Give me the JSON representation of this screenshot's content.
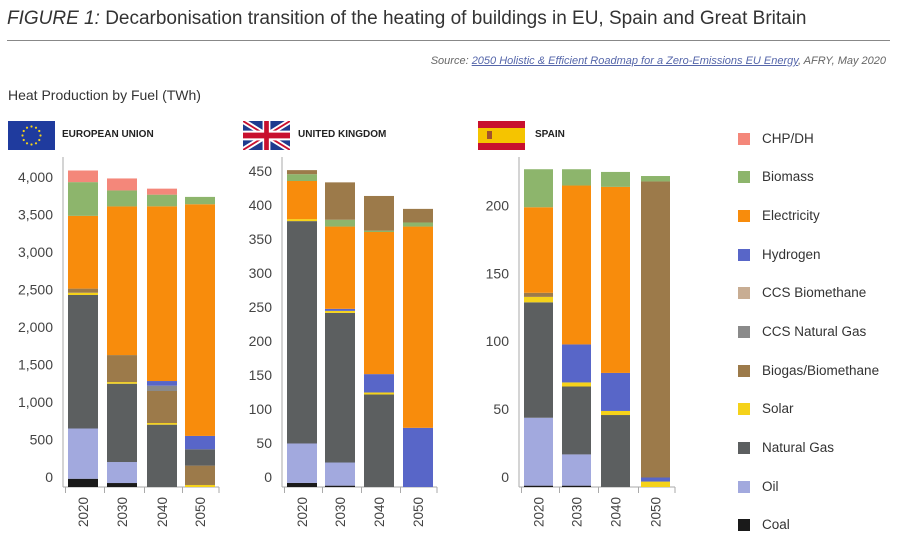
{
  "header": {
    "figure_label": "FIGURE 1:",
    "title": "Decarbonisation transition of the heating of buildings in EU, Spain and Great Britain",
    "source_prefix": "Source: ",
    "source_link": "2050 Holistic & Efficient Roadmap for a Zero-Emissions EU Energy",
    "source_suffix": ", AFRY, May 2020",
    "subtitle": "Heat Production by Fuel (TWh)"
  },
  "legend": [
    {
      "label": "CHP/DH",
      "color": "#f4877a"
    },
    {
      "label": "Biomass",
      "color": "#8db56c"
    },
    {
      "label": "Electricity",
      "color": "#f88c0c"
    },
    {
      "label": "Hydrogen",
      "color": "#5866c8"
    },
    {
      "label": "CCS Biomethane",
      "color": "#c8ad93"
    },
    {
      "label": "CCS Natural Gas",
      "color": "#8a8a8a"
    },
    {
      "label": "Biogas/Biomethane",
      "color": "#9c7a4a"
    },
    {
      "label": "Solar",
      "color": "#f5d21a"
    },
    {
      "label": "Natural Gas",
      "color": "#5c5f60"
    },
    {
      "label": "Oil",
      "color": "#a2a9de"
    },
    {
      "label": "Coal",
      "color": "#1a1a1a"
    }
  ],
  "chart_data": [
    {
      "type": "bar",
      "stacked": true,
      "title": "EUROPEAN UNION",
      "ylabel": "TWh",
      "ylim": [
        0,
        4200
      ],
      "yticks": [
        "0",
        "500",
        "1,000",
        "1,500",
        "2,000",
        "2,500",
        "3,000",
        "3,500",
        "4,000"
      ],
      "categories": [
        "2020",
        "2030",
        "2040",
        "2050"
      ],
      "stacks": [
        [
          [
            "Coal",
            110
          ],
          [
            "Oil",
            670
          ],
          [
            "Natural Gas",
            1780
          ],
          [
            "Solar",
            30
          ],
          [
            "Biogas/Biomethane",
            55
          ],
          [
            "Electricity",
            970
          ],
          [
            "Biomass",
            450
          ],
          [
            "CHP/DH",
            155
          ]
        ],
        [
          [
            "Coal",
            53
          ],
          [
            "Oil",
            280
          ],
          [
            "Natural Gas",
            1044
          ],
          [
            "Solar",
            22
          ],
          [
            "Biogas/Biomethane",
            360
          ],
          [
            "Electricity",
            1982
          ],
          [
            "Biomass",
            213
          ],
          [
            "CHP/DH",
            160
          ]
        ],
        [
          [
            "Natural Gas",
            831
          ],
          [
            "Solar",
            22
          ],
          [
            "Biogas/Biomethane",
            427
          ],
          [
            "CCS Natural Gas",
            71
          ],
          [
            "Hydrogen",
            62
          ],
          [
            "Electricity",
            2329
          ],
          [
            "Biomass",
            156
          ],
          [
            "CHP/DH",
            80
          ]
        ],
        [
          [
            "Solar",
            27
          ],
          [
            "Biogas/Biomethane",
            258
          ],
          [
            "Natural Gas",
            218
          ],
          [
            "Hydrogen",
            178
          ],
          [
            "Electricity",
            3089
          ],
          [
            "Biomass",
            98
          ]
        ]
      ]
    },
    {
      "type": "bar",
      "stacked": true,
      "title": "UNITED KINGDOM",
      "ylabel": "TWh",
      "ylim": [
        0,
        470
      ],
      "yticks": [
        "0",
        "50",
        "100",
        "150",
        "200",
        "250",
        "300",
        "350",
        "400",
        "450"
      ],
      "categories": [
        "2020",
        "2030",
        "2040",
        "2050"
      ],
      "stacks": [
        [
          [
            "Coal",
            6
          ],
          [
            "Oil",
            58
          ],
          [
            "Natural Gas",
            327
          ],
          [
            "Solar",
            3
          ],
          [
            "Electricity",
            56
          ],
          [
            "Biomass",
            10
          ],
          [
            "Biogas/Biomethane",
            6
          ]
        ],
        [
          [
            "Coal",
            2
          ],
          [
            "Oil",
            34
          ],
          [
            "Natural Gas",
            220
          ],
          [
            "Solar",
            3
          ],
          [
            "Hydrogen",
            3
          ],
          [
            "Electricity",
            121
          ],
          [
            "Biomass",
            10
          ],
          [
            "Biogas/Biomethane",
            55
          ]
        ],
        [
          [
            "Natural Gas",
            136
          ],
          [
            "Solar",
            3
          ],
          [
            "Hydrogen",
            27
          ],
          [
            "Electricity",
            209
          ],
          [
            "Biomass",
            2
          ],
          [
            "Biogas/Biomethane",
            51
          ]
        ],
        [
          [
            "Hydrogen",
            87
          ],
          [
            "Electricity",
            296
          ],
          [
            "Biomass",
            6
          ],
          [
            "Biogas/Biomethane",
            20
          ]
        ]
      ]
    },
    {
      "type": "bar",
      "stacked": true,
      "title": "SPAIN",
      "ylabel": "TWh",
      "ylim": [
        0,
        235
      ],
      "yticks": [
        "0",
        "50",
        "100",
        "150",
        "200"
      ],
      "categories": [
        "2020",
        "2030",
        "2040",
        "2050"
      ],
      "stacks": [
        [
          [
            "Coal",
            1
          ],
          [
            "Oil",
            50
          ],
          [
            "Natural Gas",
            85
          ],
          [
            "Solar",
            4
          ],
          [
            "Biogas/Biomethane",
            3
          ],
          [
            "Electricity",
            63
          ],
          [
            "Biomass",
            28
          ]
        ],
        [
          [
            "Coal",
            1
          ],
          [
            "Oil",
            23
          ],
          [
            "Natural Gas",
            50
          ],
          [
            "Solar",
            3
          ],
          [
            "Hydrogen",
            28
          ],
          [
            "Electricity",
            117
          ],
          [
            "Biomass",
            12
          ]
        ],
        [
          [
            "Natural Gas",
            53
          ],
          [
            "Solar",
            3
          ],
          [
            "Hydrogen",
            28
          ],
          [
            "Electricity",
            137
          ],
          [
            "Biomass",
            11
          ]
        ],
        [
          [
            "Solar",
            4
          ],
          [
            "Hydrogen",
            3
          ],
          [
            "Biogas/Biomethane",
            218
          ],
          [
            "Biomass",
            4
          ]
        ]
      ]
    }
  ]
}
